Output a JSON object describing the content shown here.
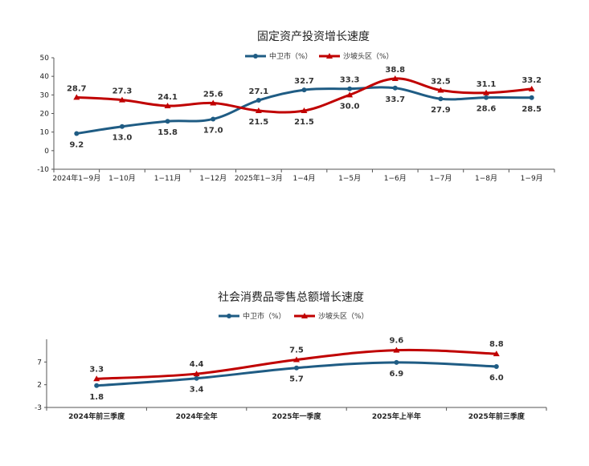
{
  "colors": {
    "blue": "#1f5c84",
    "red": "#c00000"
  },
  "chart_data": [
    {
      "type": "line",
      "title": "固定资产投资增长速度",
      "categories": [
        "2024年1−9月",
        "1−10月",
        "1−11月",
        "1−12月",
        "2025年1−3月",
        "1−4月",
        "1−5月",
        "1−6月",
        "1−7月",
        "1−8月",
        "1−9月"
      ],
      "ylim": [
        -10,
        50
      ],
      "yticks": [
        "-10",
        "0",
        "10",
        "20",
        "30",
        "40",
        "50"
      ],
      "legend_position": "top-center",
      "grid": false,
      "series": [
        {
          "name": "中卫市（%）",
          "color": "#1f5c84",
          "marker": "circle",
          "values": [
            9.2,
            13.0,
            15.8,
            17.0,
            27.1,
            32.7,
            33.3,
            33.7,
            27.9,
            28.6,
            28.5
          ],
          "labels": [
            "9.2",
            "13.0",
            "15.8",
            "17.0",
            "27.1",
            "32.7",
            "33.3",
            "33.7",
            "27.9",
            "28.6",
            "28.5"
          ]
        },
        {
          "name": "沙坡头区（%）",
          "color": "#c00000",
          "marker": "triangle",
          "values": [
            28.7,
            27.3,
            24.1,
            25.6,
            21.5,
            21.5,
            30.0,
            38.8,
            32.5,
            31.1,
            33.2
          ],
          "labels": [
            "28.7",
            "27.3",
            "24.1",
            "25.6",
            "21.5",
            "21.5",
            "30.0",
            "38.8",
            "32.5",
            "31.1",
            "33.2"
          ]
        }
      ]
    },
    {
      "type": "line",
      "title": "社会消费品零售总额增长速度",
      "categories": [
        "2024年前三季度",
        "2024年全年",
        "2025年一季度",
        "2025年上半年",
        "2025年前三季度"
      ],
      "ylim": [
        -3,
        12
      ],
      "yticks": [
        "-3",
        "2",
        "7"
      ],
      "legend_position": "top-center",
      "grid": false,
      "series": [
        {
          "name": "中卫市（%）",
          "color": "#1f5c84",
          "marker": "circle",
          "values": [
            1.8,
            3.4,
            5.7,
            6.9,
            6.0
          ],
          "labels": [
            "1.8",
            "3.4",
            "5.7",
            "6.9",
            "6.0"
          ]
        },
        {
          "name": "沙坡头区（%）",
          "color": "#c00000",
          "marker": "triangle",
          "values": [
            3.3,
            4.4,
            7.5,
            9.6,
            8.8
          ],
          "labels": [
            "3.3",
            "4.4",
            "7.5",
            "9.6",
            "8.8"
          ]
        }
      ]
    }
  ]
}
